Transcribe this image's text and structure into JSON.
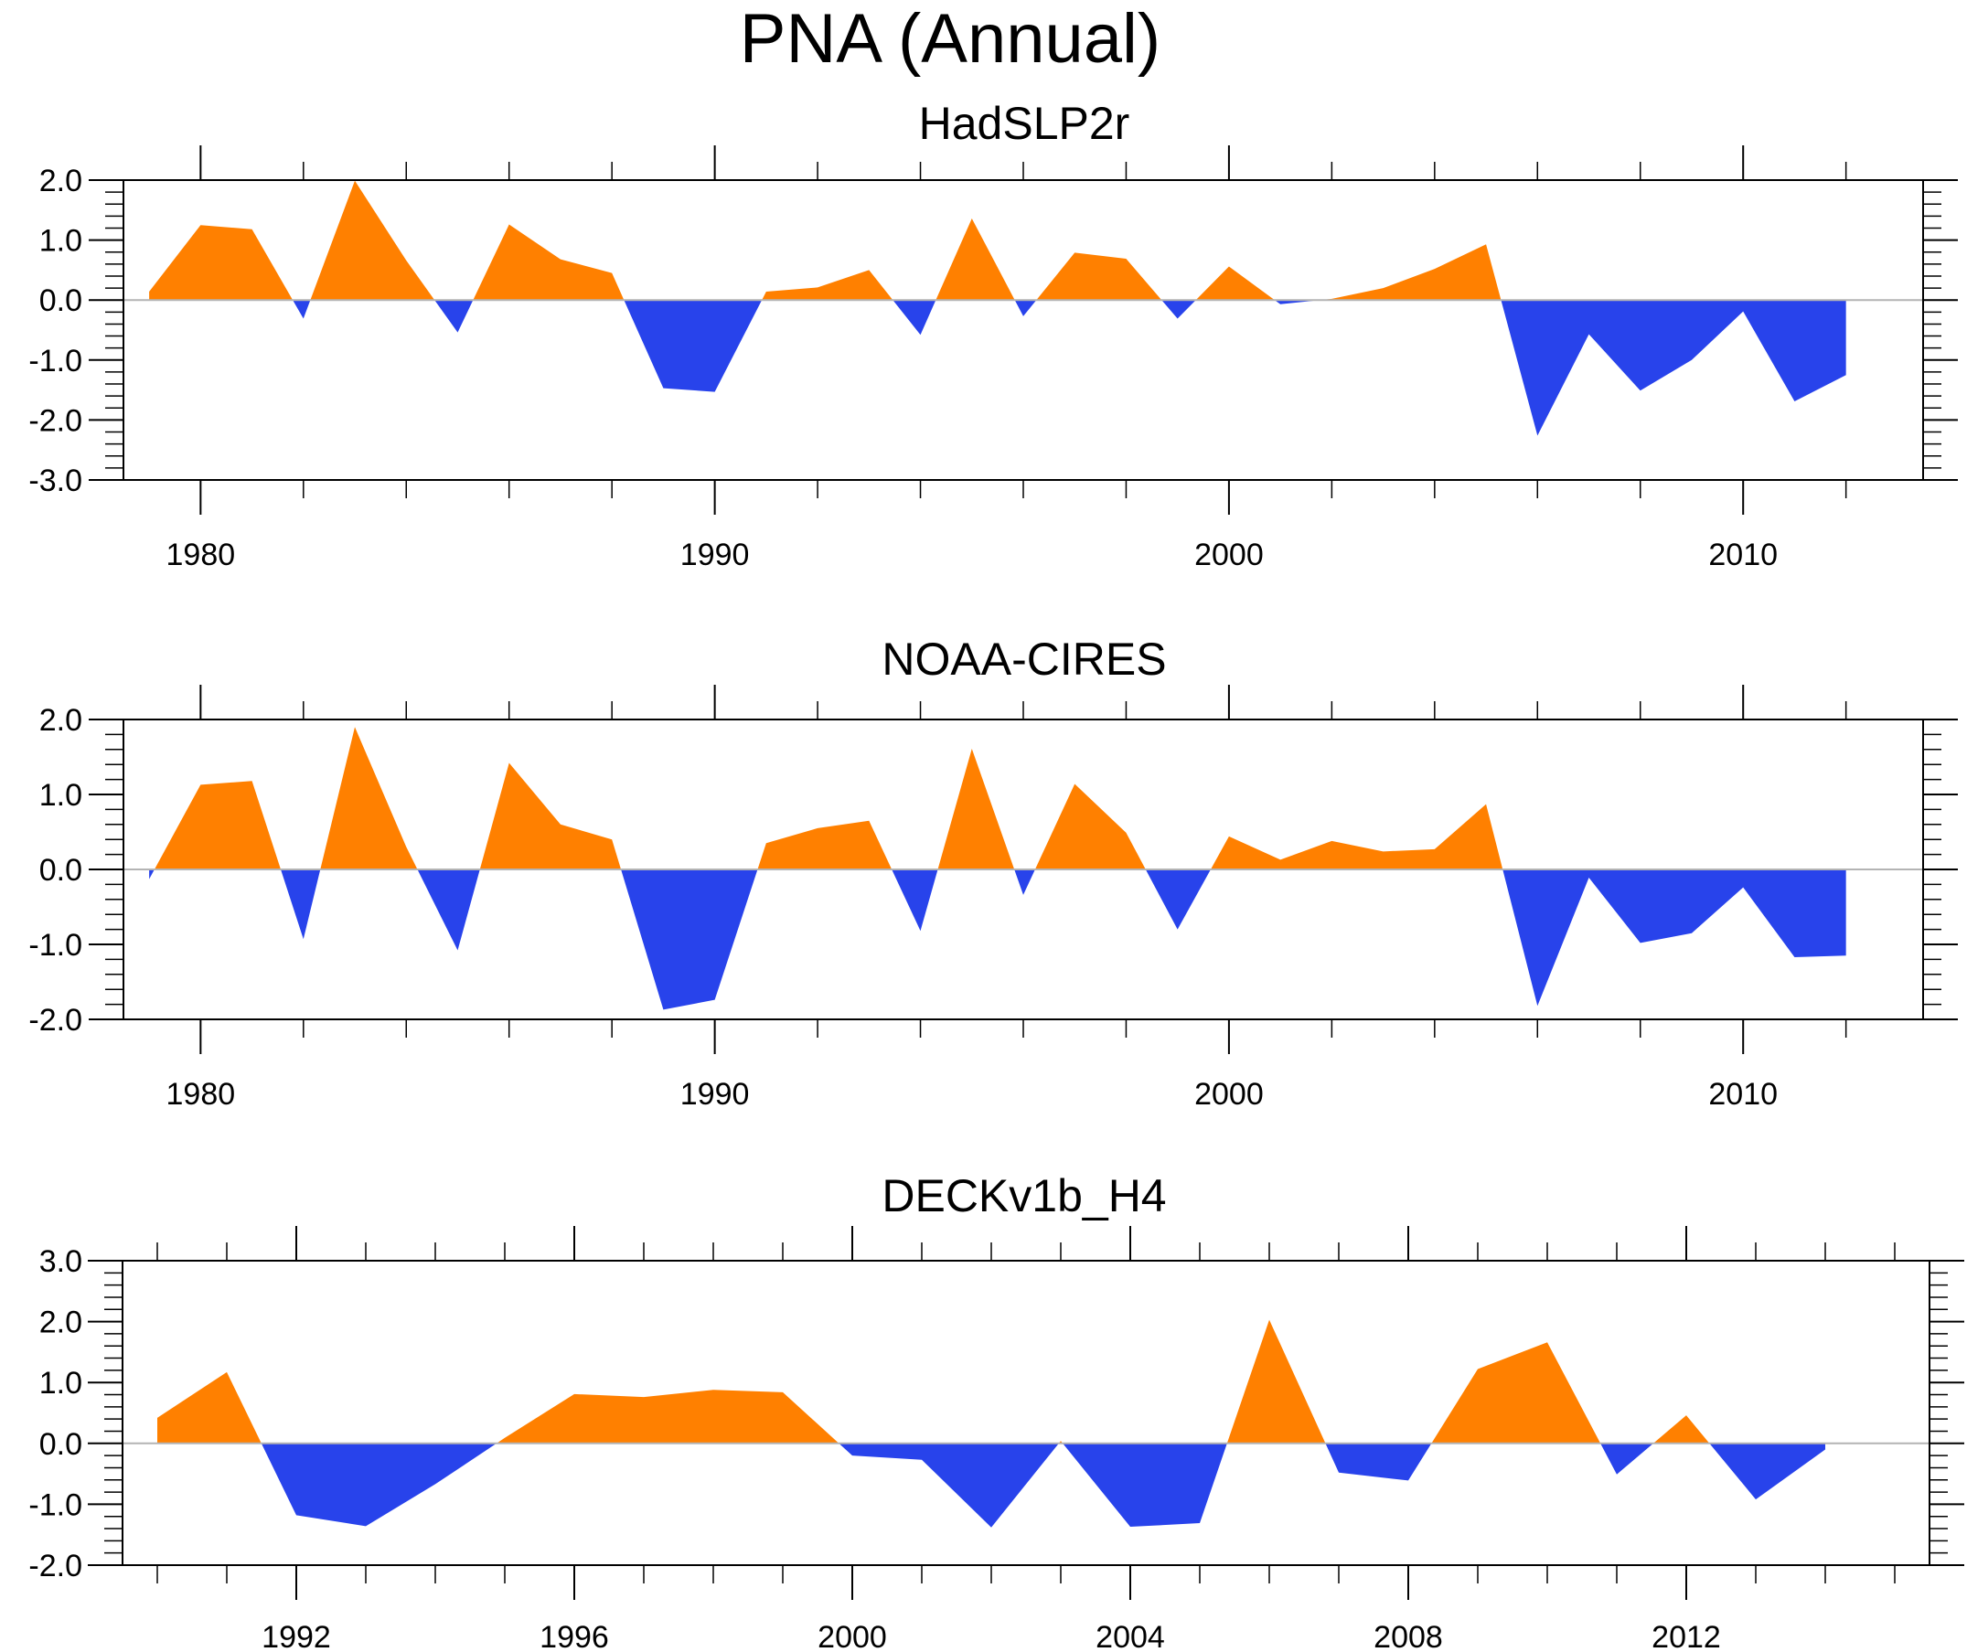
{
  "figure_title": "PNA (Annual)",
  "colors": {
    "positive_fill": "#FF8000",
    "negative_fill": "#2843EB",
    "zero_line": "#b4b4b4",
    "axis": "#000000"
  },
  "chart_data": [
    {
      "type": "area",
      "title": "HadSLP2r",
      "xlabel": "",
      "ylabel": "",
      "xlim": [
        1978.5,
        2013.5
      ],
      "ylim": [
        -3.0,
        2.0
      ],
      "x_major_ticks": [
        1980,
        1990,
        2000,
        2010
      ],
      "x_tick_labels": [
        "1980",
        "1990",
        "2000",
        "2010"
      ],
      "x_minor_step": 2,
      "y_ticks": [
        2.0,
        1.0,
        0.0,
        -1.0,
        -2.0,
        -3.0
      ],
      "y_tick_labels": [
        "2.0",
        "1.0",
        "0.0",
        "-1.0",
        "-2.0",
        "-3.0"
      ],
      "y_minor_step": 0.2,
      "grid": false,
      "legend": "none",
      "fill_rule": "orange above zero, blue below zero",
      "x": [
        1979,
        1980,
        1981,
        1982,
        1983,
        1984,
        1985,
        1986,
        1987,
        1988,
        1989,
        1990,
        1991,
        1992,
        1993,
        1994,
        1995,
        1996,
        1997,
        1998,
        1999,
        2000,
        2001,
        2002,
        2003,
        2004,
        2005,
        2006,
        2007,
        2008,
        2009,
        2010,
        2011,
        2012
      ],
      "values": [
        0.14,
        1.25,
        1.18,
        -0.31,
        1.99,
        0.66,
        -0.54,
        1.26,
        0.68,
        0.45,
        -1.47,
        -1.53,
        0.14,
        0.21,
        0.5,
        -0.58,
        1.36,
        -0.27,
        0.79,
        0.69,
        -0.31,
        0.56,
        -0.07,
        0.02,
        0.2,
        0.52,
        0.93,
        -2.26,
        -0.57,
        -1.51,
        -1.0,
        -0.19,
        -1.69,
        -1.25
      ]
    },
    {
      "type": "area",
      "title": "NOAA-CIRES",
      "xlabel": "",
      "ylabel": "",
      "xlim": [
        1978.5,
        2013.5
      ],
      "ylim": [
        -2.0,
        2.0
      ],
      "x_major_ticks": [
        1980,
        1990,
        2000,
        2010
      ],
      "x_tick_labels": [
        "1980",
        "1990",
        "2000",
        "2010"
      ],
      "x_minor_step": 2,
      "y_ticks": [
        2.0,
        1.0,
        0.0,
        -1.0,
        -2.0
      ],
      "y_tick_labels": [
        "2.0",
        "1.0",
        "0.0",
        "-1.0",
        "-2.0"
      ],
      "y_minor_step": 0.2,
      "grid": false,
      "legend": "none",
      "fill_rule": "orange above zero, blue below zero",
      "x": [
        1979,
        1980,
        1981,
        1982,
        1983,
        1984,
        1985,
        1986,
        1987,
        1988,
        1989,
        1990,
        1991,
        1992,
        1993,
        1994,
        1995,
        1996,
        1997,
        1998,
        1999,
        2000,
        2001,
        2002,
        2003,
        2004,
        2005,
        2006,
        2007,
        2008,
        2009,
        2010,
        2011,
        2012
      ],
      "values": [
        -0.13,
        1.13,
        1.18,
        -0.93,
        1.9,
        0.3,
        -1.08,
        1.42,
        0.6,
        0.4,
        -1.87,
        -1.74,
        0.35,
        0.55,
        0.65,
        -0.82,
        1.61,
        -0.34,
        1.14,
        0.49,
        -0.8,
        0.44,
        0.13,
        0.38,
        0.24,
        0.27,
        0.87,
        -1.82,
        -0.11,
        -0.98,
        -0.85,
        -0.24,
        -1.17,
        -1.15
      ]
    },
    {
      "type": "area",
      "title": "DECKv1b_H4",
      "xlabel": "",
      "ylabel": "",
      "xlim": [
        1989.5,
        2015.5
      ],
      "ylim": [
        -2.0,
        3.0
      ],
      "x_major_ticks": [
        1992,
        1996,
        2000,
        2004,
        2008,
        2012
      ],
      "x_tick_labels": [
        "1992",
        "1996",
        "2000",
        "2004",
        "2008",
        "2012"
      ],
      "x_minor_step": 1,
      "y_ticks": [
        3.0,
        2.0,
        1.0,
        0.0,
        -1.0,
        -2.0
      ],
      "y_tick_labels": [
        "3.0",
        "2.0",
        "1.0",
        "0.0",
        "-1.0",
        "-2.0"
      ],
      "y_minor_step": 0.2,
      "grid": false,
      "legend": "none",
      "fill_rule": "orange above zero, blue below zero",
      "x": [
        1990,
        1991,
        1992,
        1993,
        1994,
        1995,
        1996,
        1997,
        1998,
        1999,
        2000,
        2001,
        2002,
        2003,
        2004,
        2005,
        2006,
        2007,
        2008,
        2009,
        2010,
        2011,
        2012,
        2013,
        2014
      ],
      "values": [
        0.42,
        1.17,
        -1.18,
        -1.36,
        -0.67,
        0.09,
        0.81,
        0.76,
        0.88,
        0.84,
        -0.2,
        -0.27,
        -1.38,
        0.04,
        -1.37,
        -1.31,
        2.03,
        -0.48,
        -0.61,
        1.22,
        1.66,
        -0.51,
        0.46,
        -0.92,
        -0.1
      ]
    }
  ]
}
